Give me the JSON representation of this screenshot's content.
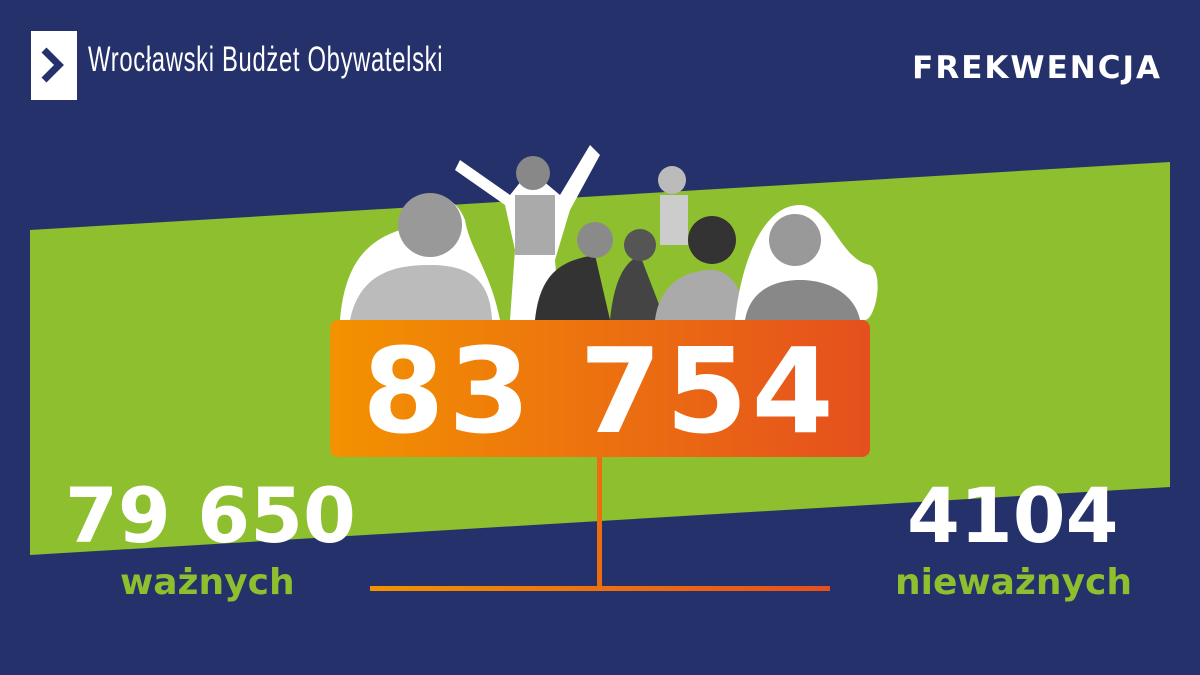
{
  "header": {
    "brand": "Wrocławski Budżet Obywatelski",
    "title": "FREKWENCJA"
  },
  "colors": {
    "background": "#25316a",
    "green": "#8dbf2e",
    "orange_start": "#f39200",
    "orange_end": "#e5501e"
  },
  "stats": {
    "total": "83 754",
    "valid": {
      "value": "79 650",
      "label": "ważnych"
    },
    "invalid": {
      "value": "4104",
      "label": "nieważnych"
    }
  },
  "images": {
    "people": "people-collage-grayscale"
  }
}
